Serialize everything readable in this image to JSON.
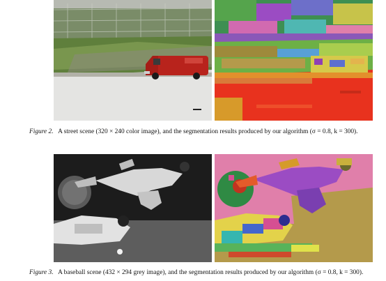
{
  "figures": [
    {
      "label": "Figure 2.",
      "caption": "A street scene (320 × 240 color image), and the segmentation results produced by our algorithm (σ = 0.8, k = 300).",
      "panels": [
        {
          "name": "original",
          "content": "photograph"
        },
        {
          "name": "segmentation",
          "content": "segmentation-map"
        }
      ]
    },
    {
      "label": "Figure 3.",
      "caption": "A baseball scene (432 × 294 grey image), and the segmentation results produced by our algorithm (σ = 0.8, k = 300).",
      "panels": [
        {
          "name": "original",
          "content": "photograph"
        },
        {
          "name": "segmentation",
          "content": "segmentation-map"
        }
      ]
    }
  ],
  "colors": {
    "street_sky": "#9fa39a",
    "street_grass": "#6f8e4c",
    "street_road": "#dcdcdc",
    "van_red": "#b8231c",
    "seg_red": "#e8321e",
    "seg_pink": "#e07faa",
    "seg_green": "#2f8a44",
    "seg_purple": "#9b4cc3",
    "seg_olive": "#b49a4b"
  }
}
